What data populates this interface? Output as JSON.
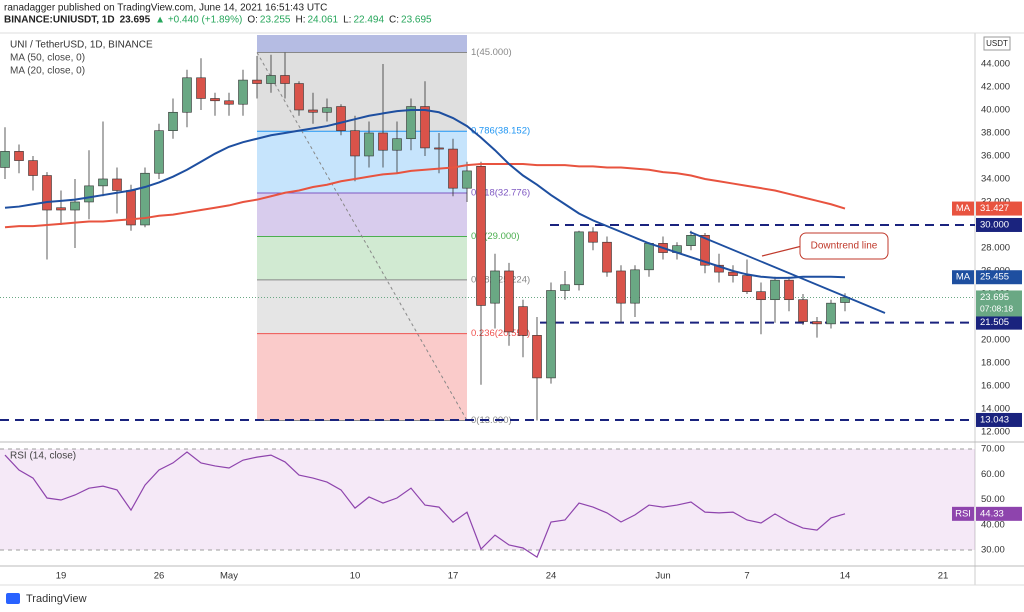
{
  "header": {
    "published": "ranadagger published on TradingView.com, June 14, 2021 16:51:43 UTC",
    "symbol": "BINANCE:UNIUSDT, 1D",
    "change": "▲ +0.440 (+1.89%)",
    "ohlc_labels": [
      "O:",
      "H:",
      "L:",
      "C:"
    ]
  },
  "footer": "TradingView",
  "chart_data": {
    "type": "candlestick",
    "title": "UNI / TetherUSD, 1D, BINANCE",
    "currency": "USDT",
    "categories": [
      null,
      null,
      null,
      null,
      "19",
      null,
      null,
      null,
      null,
      null,
      null,
      "26",
      null,
      null,
      null,
      null,
      "May",
      null,
      null,
      null,
      null,
      null,
      null,
      null,
      null,
      "10",
      null,
      null,
      null,
      null,
      null,
      null,
      "17",
      null,
      null,
      null,
      null,
      null,
      null,
      "24",
      null,
      null,
      null,
      null,
      null,
      null,
      null,
      "Jun",
      null,
      null,
      null,
      null,
      null,
      "7",
      null,
      null,
      null,
      null,
      null,
      null,
      "14",
      null,
      null,
      null,
      null,
      null,
      null,
      "21",
      null,
      null
    ],
    "ohlc": {
      "open": [
        35,
        36.4,
        35.6,
        34.3,
        31.5,
        31.3,
        32,
        33.4,
        34,
        33,
        30,
        34.5,
        38.2,
        39.8,
        42.8,
        41,
        40.8,
        40.5,
        42.6,
        42.3,
        43,
        42.3,
        40,
        39.8,
        40.3,
        38.2,
        36,
        38,
        36.5,
        37.5,
        40.3,
        36.7,
        36.6,
        33.2,
        35.1,
        23.2,
        26.0,
        22.9,
        20.4,
        16.7,
        24.3,
        24.8,
        29.4,
        28.5,
        26,
        23.2,
        26.1,
        28.4,
        27.6,
        28.2,
        29.1,
        26.5,
        25.9,
        25.6,
        24.2,
        23.5,
        25.2,
        23.5,
        21.6,
        21.4,
        23.255,
        null,
        null,
        null,
        null,
        null,
        null,
        null,
        null,
        null
      ],
      "high": [
        38.5,
        37,
        36,
        34.6,
        33,
        34,
        36.5,
        39,
        35,
        33.5,
        35,
        38.8,
        41,
        43.5,
        44.5,
        41.5,
        41.5,
        43.5,
        44.7,
        44.8,
        45,
        42.5,
        41.5,
        41,
        40.5,
        39.5,
        39,
        44,
        39,
        41,
        42.5,
        38,
        37.5,
        35.5,
        35.5,
        27.5,
        26.7,
        23.5,
        22,
        25,
        26,
        29.5,
        29.8,
        29,
        26.5,
        26.5,
        28.5,
        29,
        28.5,
        29.5,
        29.3,
        27.5,
        26.5,
        27,
        25,
        25.5,
        25.5,
        24,
        22,
        23.5,
        24.061,
        null,
        null,
        null,
        null,
        null,
        null,
        null,
        null,
        null
      ],
      "low": [
        34,
        34.5,
        33,
        27,
        30,
        28,
        30.5,
        32.5,
        31,
        29.5,
        29.8,
        34,
        37.5,
        38.5,
        40,
        39.5,
        39.5,
        39.5,
        41,
        41.5,
        41,
        39.5,
        38.8,
        39,
        37.8,
        33.8,
        35,
        35,
        34.5,
        36.5,
        36,
        34.5,
        32.5,
        32,
        16.1,
        21,
        19.5,
        18.5,
        13.0,
        16.2,
        23.5,
        24.3,
        27.8,
        25.5,
        21.5,
        22,
        25.5,
        27,
        27,
        27.8,
        25.8,
        25,
        25,
        24,
        20.5,
        21.5,
        22.5,
        21.3,
        20.2,
        21,
        22.494,
        null,
        null,
        null,
        null,
        null,
        null,
        null,
        null,
        null
      ],
      "close": [
        36.4,
        35.6,
        34.3,
        31.3,
        31.3,
        32,
        33.4,
        34,
        33,
        30,
        34.5,
        38.2,
        39.8,
        42.8,
        41,
        40.8,
        40.5,
        42.6,
        42.3,
        43,
        42.3,
        40,
        39.8,
        40.2,
        38.2,
        36,
        38,
        36.5,
        37.5,
        40.3,
        36.7,
        36.6,
        33.2,
        34.7,
        23.0,
        26.0,
        20.7,
        20.4,
        16.7,
        24.3,
        24.8,
        29.4,
        28.5,
        25.9,
        23.2,
        26.1,
        28.4,
        27.6,
        28.2,
        29.1,
        26.5,
        25.9,
        25.6,
        24.2,
        23.5,
        25.2,
        23.5,
        21.6,
        21.4,
        23.2,
        23.695,
        null,
        null,
        null,
        null,
        null,
        null,
        null,
        null,
        null
      ],
      "up_color": "#6aa884",
      "down_color": "#d9534a"
    },
    "countdown": "07:08:18",
    "series": [
      {
        "name": "MA (50, close, 0)",
        "badge": "MA",
        "color": "#e8533f",
        "values": [
          29.8,
          29.9,
          29.9,
          30.0,
          30.1,
          30.2,
          30.3,
          30.3,
          30.4,
          30.5,
          30.6,
          30.8,
          30.9,
          31.1,
          31.3,
          31.5,
          31.7,
          32.0,
          32.2,
          32.5,
          32.8,
          33.0,
          33.3,
          33.5,
          33.8,
          34.0,
          34.2,
          34.4,
          34.5,
          34.7,
          34.8,
          34.9,
          35.0,
          35.2,
          35.3,
          35.3,
          35.3,
          35.3,
          35.2,
          35.2,
          35.2,
          35.1,
          35.1,
          35.0,
          35.0,
          34.9,
          34.8,
          34.6,
          34.5,
          34.3,
          34.0,
          33.8,
          33.6,
          33.4,
          33.2,
          33.0,
          32.7,
          32.4,
          32.1,
          31.8,
          31.427,
          null,
          null,
          null,
          null,
          null,
          null,
          null,
          null,
          null
        ]
      },
      {
        "name": "MA (20, close, 0)",
        "badge": "MA",
        "color": "#1e4fa0",
        "values": [
          31.5,
          31.6,
          31.8,
          32.0,
          32.1,
          32.2,
          32.4,
          32.6,
          32.8,
          33.0,
          33.3,
          33.7,
          34.2,
          34.8,
          35.5,
          36.2,
          36.8,
          37.2,
          37.5,
          37.8,
          38.0,
          38.2,
          38.4,
          38.6,
          38.9,
          39.2,
          39.5,
          39.7,
          39.9,
          40.0,
          40.0,
          39.8,
          39.3,
          38.6,
          37.6,
          36.5,
          35.3,
          34.3,
          33.5,
          32.6,
          31.8,
          31.0,
          30.4,
          29.9,
          29.4,
          28.9,
          28.4,
          28.0,
          27.6,
          27.2,
          26.8,
          26.4,
          26.0,
          25.7,
          25.5,
          25.4,
          25.4,
          25.5,
          25.5,
          25.5,
          25.455,
          null,
          null,
          null,
          null,
          null,
          null,
          null,
          null,
          null
        ]
      }
    ],
    "ylim": [
      11.3,
      46.52
    ],
    "yticks": [
      {
        "value": 12,
        "label": "12.000"
      },
      {
        "value": 14,
        "label": "14.000"
      },
      {
        "value": 16,
        "label": "16.000"
      },
      {
        "value": 18,
        "label": "18.000"
      },
      {
        "value": 20,
        "label": "20.000"
      },
      {
        "value": 22,
        "label": "22.000"
      },
      {
        "value": 24,
        "label": "24.000"
      },
      {
        "value": 26,
        "label": "26.000"
      },
      {
        "value": 28,
        "label": "28.000"
      },
      {
        "value": 30,
        "label": "30.000"
      },
      {
        "value": 32,
        "label": "32.000"
      },
      {
        "value": 34,
        "label": "34.000"
      },
      {
        "value": 36,
        "label": "36.000"
      },
      {
        "value": 38,
        "label": "38.000"
      },
      {
        "value": 40,
        "label": "40.000"
      },
      {
        "value": 42,
        "label": "42.000"
      },
      {
        "value": 44,
        "label": "44.000"
      }
    ],
    "levels": [
      {
        "value": 30,
        "label": "30.000"
      },
      21.505,
      13.043
    ],
    "level_color": "#1a237e",
    "fib": {
      "levels": [
        {
          "value": 45,
          "label": "1(45.000)"
        },
        {
          "value": 38.152,
          "label": "0.786(38.152)"
        },
        {
          "value": 32.776,
          "label": "0.618(32.776)"
        },
        {
          "value": 29,
          "label": "0.5(29.000)"
        },
        {
          "value": 25.224,
          "label": "0.382(25.224)"
        },
        {
          "value": 20.552,
          "label": "0.236(20.552)"
        },
        {
          "value": 13,
          "label": "0(13.000)"
        }
      ],
      "line_colors": [
        "#888888",
        "#2196f3",
        "#7e57c2",
        "#4caf50",
        "#888888",
        "#ef5350",
        "#888888"
      ],
      "zone_colors": [
        "rgba(150,150,150,0.3)",
        "rgba(66,165,245,0.3)",
        "rgba(126,87,194,0.3)",
        "rgba(102,187,106,0.3)",
        "rgba(150,150,150,0.25)",
        "rgba(239,83,80,0.3)"
      ]
    },
    "annotation": "Downtrend line",
    "rsi": {
      "name": "RSI (14, close)",
      "badge": "RSI",
      "color": "#8e44ad",
      "values": [
        67.6,
        61.7,
        58.5,
        50.6,
        49.8,
        51.8,
        54.5,
        55.3,
        53.8,
        45.8,
        55.7,
        61.7,
        64.5,
        68.8,
        64.5,
        63.3,
        62.5,
        65.6,
        66.8,
        67.6,
        64.9,
        59.7,
        58.5,
        56.9,
        53.8,
        46.6,
        51,
        48.6,
        50.6,
        54.5,
        47.8,
        47,
        41,
        45,
        30.4,
        35.9,
        32,
        30.8,
        27.2,
        41.1,
        41.9,
        48.6,
        47,
        44.7,
        41.1,
        43.9,
        47.8,
        47,
        47.8,
        49,
        45,
        44.7,
        45,
        41.9,
        40.7,
        44.3,
        41.1,
        38.7,
        37.9,
        42.7,
        44.33,
        null,
        null,
        null,
        null,
        null,
        null,
        null,
        null,
        null
      ],
      "ylim": [
        24.06,
        71.6
      ],
      "yticks": [
        {
          "value": 30,
          "label": "30.00"
        },
        {
          "value": 40,
          "label": "40.00"
        },
        {
          "value": 50,
          "label": "50.00"
        },
        {
          "value": 60,
          "label": "60.00"
        },
        {
          "value": 70,
          "label": "70.00"
        }
      ],
      "band": [
        {
          "value": 30,
          "label": "30.00"
        },
        {
          "value": 70,
          "label": "70.00"
        }
      ]
    }
  }
}
